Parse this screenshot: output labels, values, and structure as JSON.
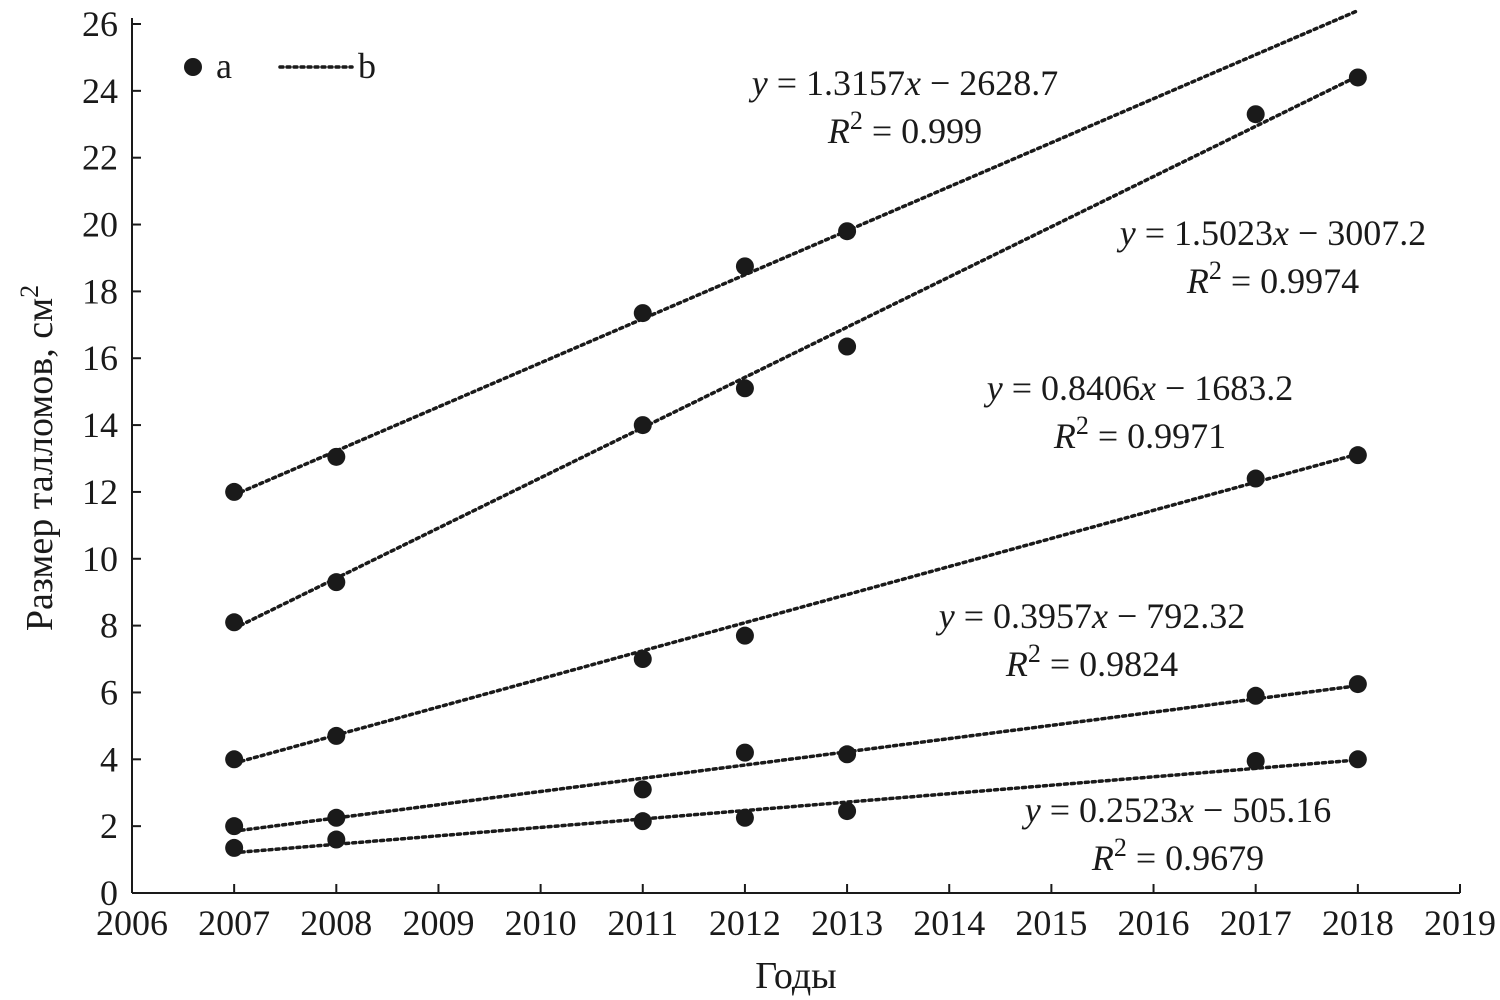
{
  "chart_data": {
    "type": "scatter",
    "title": "",
    "xlabel": "Годы",
    "ylabel": "Размер талломов, см",
    "ylabel_superscript": "2",
    "xlim": [
      2006,
      2019
    ],
    "ylim": [
      0,
      26
    ],
    "x_ticks": [
      2006,
      2007,
      2008,
      2009,
      2010,
      2011,
      2012,
      2013,
      2014,
      2015,
      2016,
      2017,
      2018,
      2019
    ],
    "y_ticks": [
      0,
      2,
      4,
      6,
      8,
      10,
      12,
      14,
      16,
      18,
      20,
      22,
      24,
      26
    ],
    "grid": false,
    "legend": {
      "placement": "top-left",
      "entries": [
        {
          "label": "a",
          "marker": "point"
        },
        {
          "label": "b",
          "marker": "dotted-line"
        }
      ]
    },
    "series": [
      {
        "x": [
          2007,
          2008,
          2011,
          2012,
          2013
        ],
        "y": [
          12.0,
          13.05,
          17.35,
          18.75,
          19.8
        ],
        "trend": {
          "slope": 1.3157,
          "intercept": -2628.7,
          "x_range": [
            2007,
            2018
          ],
          "end_y": 26.4
        },
        "equation": "y = 1.3157x − 2628.7",
        "r2_label": "= 0.999"
      },
      {
        "x": [
          2007,
          2008,
          2011,
          2012,
          2013,
          2017,
          2018
        ],
        "y": [
          8.1,
          9.3,
          14.0,
          15.1,
          16.35,
          23.3,
          24.4
        ],
        "trend": {
          "slope": 1.5023,
          "intercept": -3007.2,
          "x_range": [
            2007,
            2018
          ]
        },
        "equation": "y = 1.5023x − 3007.2",
        "r2_label": "= 0.9974"
      },
      {
        "x": [
          2007,
          2008,
          2011,
          2012,
          2017,
          2018
        ],
        "y": [
          4.0,
          4.7,
          7.0,
          7.7,
          12.4,
          13.1
        ],
        "trend": {
          "slope": 0.8406,
          "intercept": -1683.2,
          "x_range": [
            2007,
            2018
          ]
        },
        "equation": "y = 0.8406x − 1683.2",
        "r2_label": "= 0.9971"
      },
      {
        "x": [
          2007,
          2008,
          2011,
          2012,
          2013,
          2017,
          2018
        ],
        "y": [
          2.0,
          2.25,
          3.1,
          4.2,
          4.15,
          5.9,
          6.25
        ],
        "trend": {
          "slope": 0.3957,
          "intercept": -792.32,
          "x_range": [
            2007,
            2018
          ]
        },
        "equation": "y = 0.3957x − 792.32",
        "r2_label": "= 0.9824"
      },
      {
        "x": [
          2007,
          2008,
          2011,
          2012,
          2013,
          2017,
          2018
        ],
        "y": [
          1.35,
          1.6,
          2.15,
          2.25,
          2.45,
          3.95,
          4.0
        ],
        "trend": {
          "slope": 0.2523,
          "intercept": -505.16,
          "x_range": [
            2007,
            2018
          ]
        },
        "equation": "y = 0.2523x − 505.16",
        "r2_label": "= 0.9679"
      }
    ]
  }
}
